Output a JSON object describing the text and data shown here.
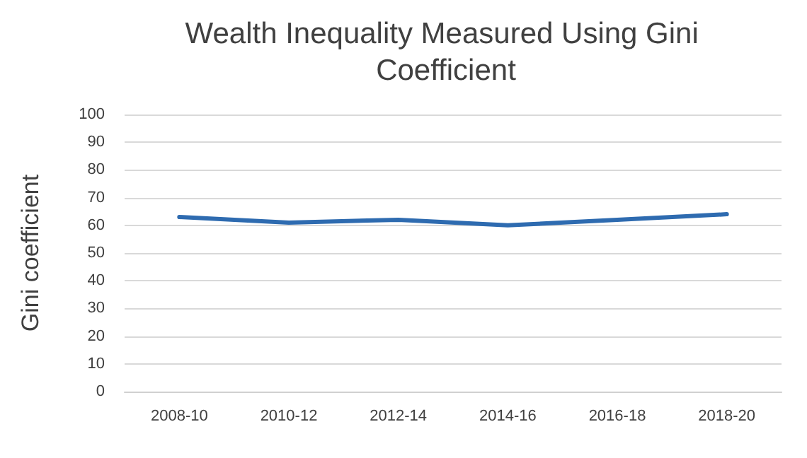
{
  "chart_data": {
    "type": "line",
    "title": "Wealth Inequality Measured Using Gini Coefficient",
    "ylabel": "Gini coefficient",
    "categories": [
      "2008-10",
      "2010-12",
      "2012-14",
      "2014-16",
      "2016-18",
      "2018-20"
    ],
    "series": [
      {
        "color": "#2e6bb0",
        "values": [
          63,
          61,
          62,
          60,
          62,
          64
        ]
      }
    ],
    "ylim": [
      0,
      100
    ],
    "yticks": [
      0,
      10,
      20,
      30,
      40,
      50,
      60,
      70,
      80,
      90,
      100
    ],
    "grid": "y",
    "marker": "none",
    "line_style": "solid"
  }
}
